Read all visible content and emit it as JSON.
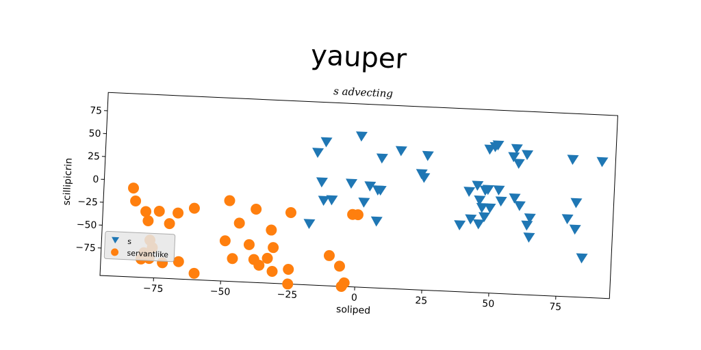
{
  "chart_data": {
    "type": "scatter",
    "title": "yauper",
    "subtitle": "s advecting",
    "xlabel": "soliped",
    "ylabel": "scillipicrin",
    "xlim": [
      -95,
      95
    ],
    "ylim": [
      -105,
      95
    ],
    "xticks": [
      -75,
      -50,
      -25,
      0,
      25,
      50,
      75
    ],
    "yticks": [
      75,
      50,
      25,
      0,
      -25,
      -50,
      -75
    ],
    "grid": false,
    "legend_position": "lower-left",
    "colors": {
      "s": "#1f77b4",
      "servantlike": "#ff7f0e"
    },
    "series": [
      {
        "name": "s",
        "marker": "triangle-down",
        "points": [
          [
            -13,
            52
          ],
          [
            -16,
            40
          ],
          [
            0,
            60
          ],
          [
            8,
            37
          ],
          [
            15,
            46
          ],
          [
            25,
            42
          ],
          [
            -14,
            8
          ],
          [
            -13,
            -12
          ],
          [
            -10,
            -11
          ],
          [
            -18,
            -38
          ],
          [
            -3,
            8
          ],
          [
            4,
            6
          ],
          [
            7,
            2
          ],
          [
            8,
            2
          ],
          [
            2,
            -12
          ],
          [
            7,
            -32
          ],
          [
            23,
            22
          ],
          [
            24,
            18
          ],
          [
            48,
            52
          ],
          [
            50,
            55
          ],
          [
            51,
            57
          ],
          [
            58,
            54
          ],
          [
            57,
            45
          ],
          [
            59,
            38
          ],
          [
            62,
            48
          ],
          [
            79,
            45
          ],
          [
            90,
            44
          ],
          [
            41,
            5
          ],
          [
            44,
            12
          ],
          [
            47,
            7
          ],
          [
            48,
            8
          ],
          [
            52,
            8
          ],
          [
            53,
            -4
          ],
          [
            46,
            -12
          ],
          [
            47,
            -22
          ],
          [
            49,
            -12
          ],
          [
            58,
            0
          ],
          [
            64,
            -21
          ],
          [
            63,
            -29
          ],
          [
            64,
            -42
          ],
          [
            38,
            -32
          ],
          [
            42,
            -25
          ],
          [
            45,
            -30
          ],
          [
            78,
            -20
          ],
          [
            81,
            -2
          ],
          [
            81,
            -31
          ],
          [
            84,
            -62
          ],
          [
            60,
            -8
          ],
          [
            45,
            -4
          ]
        ]
      },
      {
        "name": "servantlike",
        "marker": "circle",
        "points": [
          [
            -84,
            -8
          ],
          [
            -83,
            -22
          ],
          [
            -79,
            -33
          ],
          [
            -78,
            -43
          ],
          [
            -74,
            -32
          ],
          [
            -70,
            -45
          ],
          [
            -67,
            -33
          ],
          [
            -61,
            -27
          ],
          [
            -48,
            -17
          ],
          [
            -44,
            -41
          ],
          [
            -38,
            -25
          ],
          [
            -25,
            -27
          ],
          [
            -32,
            -47
          ],
          [
            -49,
            -61
          ],
          [
            -40,
            -64
          ],
          [
            -31,
            -66
          ],
          [
            -46,
            -80
          ],
          [
            -38,
            -80
          ],
          [
            -36,
            -86
          ],
          [
            -31,
            -92
          ],
          [
            -33,
            -78
          ],
          [
            -25,
            -89
          ],
          [
            -25,
            -105
          ],
          [
            -60,
            -98
          ],
          [
            -77,
            -64
          ],
          [
            -76,
            -72
          ],
          [
            -77,
            -84
          ],
          [
            -72,
            -88
          ],
          [
            -66,
            -86
          ],
          [
            -79,
            -78
          ],
          [
            -80,
            -85
          ],
          [
            -10,
            -72
          ],
          [
            -6,
            -83
          ],
          [
            -4,
            -101
          ],
          [
            -5,
            -105
          ],
          [
            0,
            -26
          ],
          [
            -2,
            -26
          ]
        ]
      }
    ]
  }
}
